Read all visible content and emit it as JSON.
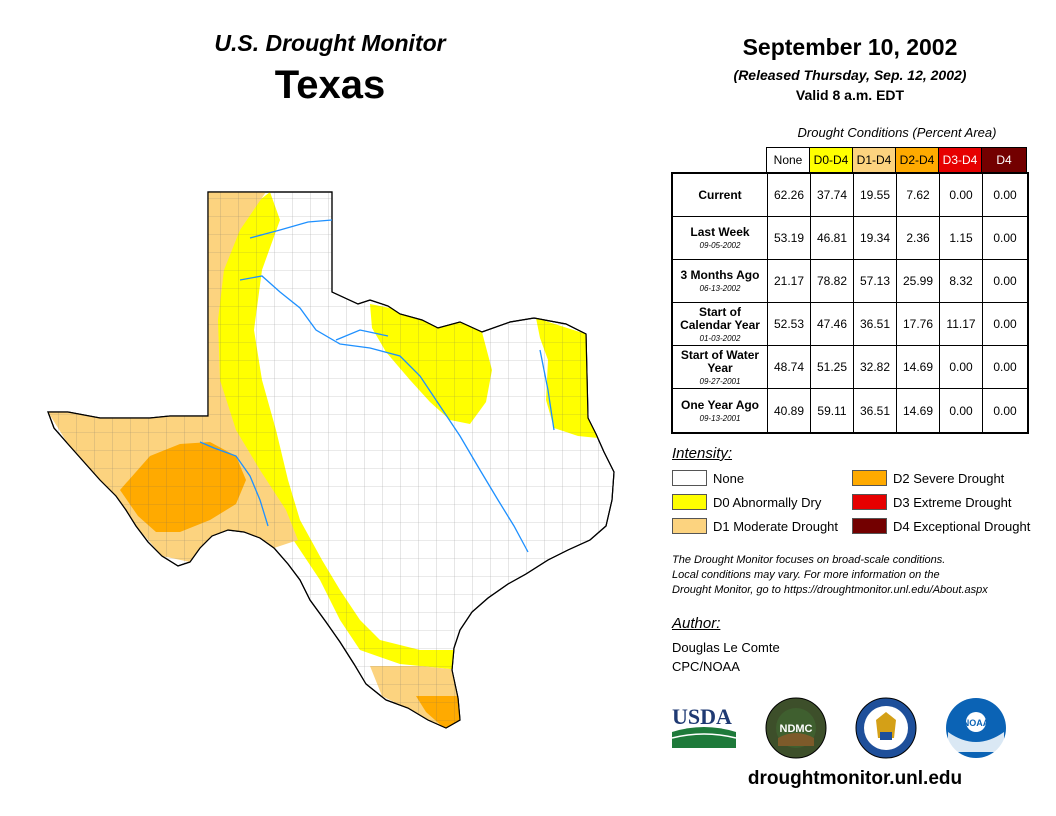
{
  "header": {
    "subtitle": "U.S. Drought Monitor",
    "state": "Texas",
    "date": "September 10, 2002",
    "released": "(Released Thursday, Sep. 12, 2002)",
    "valid": "Valid 8 a.m. EDT"
  },
  "table": {
    "title": "Drought Conditions (Percent Area)",
    "columns": [
      "None",
      "D0-D4",
      "D1-D4",
      "D2-D4",
      "D3-D4",
      "D4"
    ],
    "rows": [
      {
        "label": "Current",
        "date": "",
        "values": [
          "62.26",
          "37.74",
          "19.55",
          "7.62",
          "0.00",
          "0.00"
        ]
      },
      {
        "label": "Last Week",
        "date": "09-05-2002",
        "values": [
          "53.19",
          "46.81",
          "19.34",
          "2.36",
          "1.15",
          "0.00"
        ]
      },
      {
        "label": "3 Months Ago",
        "date": "06-13-2002",
        "values": [
          "21.17",
          "78.82",
          "57.13",
          "25.99",
          "8.32",
          "0.00"
        ]
      },
      {
        "label": "Start of Calendar Year",
        "date": "01-03-2002",
        "values": [
          "52.53",
          "47.46",
          "36.51",
          "17.76",
          "11.17",
          "0.00"
        ]
      },
      {
        "label": "Start of Water Year",
        "date": "09-27-2001",
        "values": [
          "48.74",
          "51.25",
          "32.82",
          "14.69",
          "0.00",
          "0.00"
        ]
      },
      {
        "label": "One Year Ago",
        "date": "09-13-2001",
        "values": [
          "40.89",
          "59.11",
          "36.51",
          "14.69",
          "0.00",
          "0.00"
        ]
      }
    ]
  },
  "legend": {
    "title": "Intensity:",
    "items": [
      {
        "label": "None",
        "color": "#ffffff"
      },
      {
        "label": "D0 Abnormally Dry",
        "color": "#ffff00"
      },
      {
        "label": "D1 Moderate Drought",
        "color": "#fcd37f"
      },
      {
        "label": "D2 Severe Drought",
        "color": "#ffaa00"
      },
      {
        "label": "D3 Extreme Drought",
        "color": "#e60000"
      },
      {
        "label": "D4 Exceptional Drought",
        "color": "#730000"
      }
    ]
  },
  "note": {
    "line1": "The Drought Monitor focuses on broad-scale conditions.",
    "line2": "Local conditions may vary. For more information on the",
    "line3": "Drought Monitor, go to https://droughtmonitor.unl.edu/About.aspx"
  },
  "author": {
    "title": "Author:",
    "name": "Douglas Le Comte",
    "org": "CPC/NOAA"
  },
  "logos": {
    "usda": "USDA",
    "ndmc": "NDMC",
    "noaa": "NOAA"
  },
  "url": "droughtmonitor.unl.edu"
}
